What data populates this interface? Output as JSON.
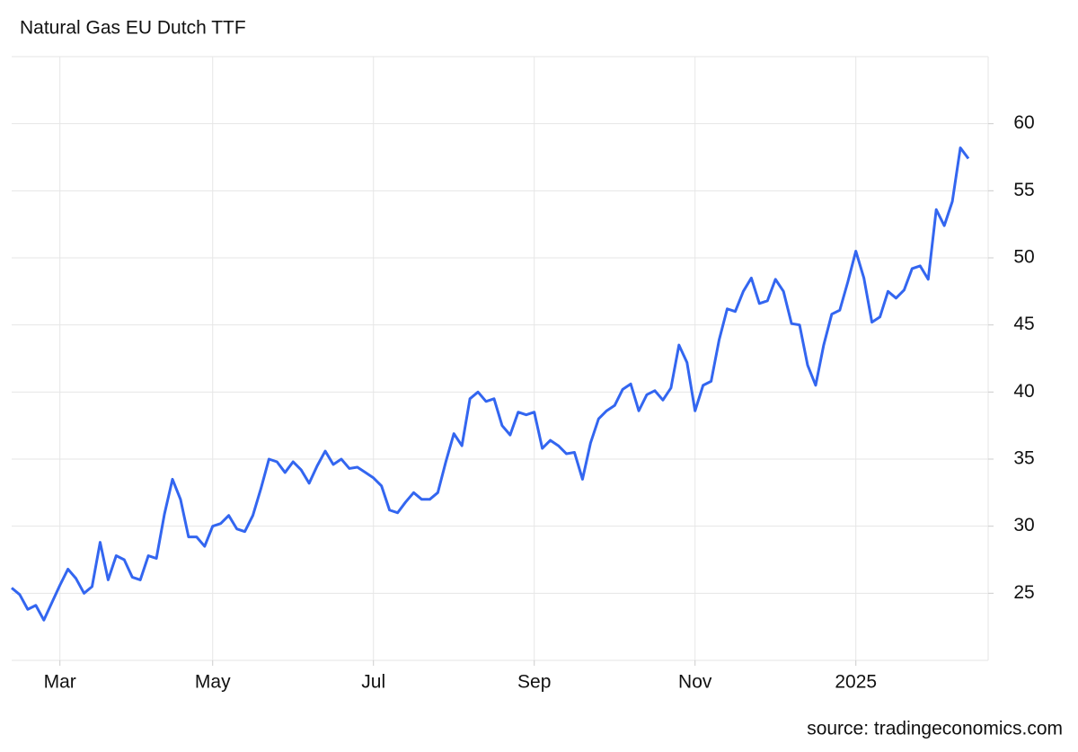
{
  "chart_data": {
    "type": "line",
    "title": "Natural Gas EU Dutch TTF",
    "source": "source: tradingeconomics.com",
    "categories": [
      null,
      null,
      null,
      null,
      null,
      null,
      "Mar",
      null,
      null,
      null,
      null,
      null,
      null,
      null,
      null,
      null,
      null,
      null,
      null,
      null,
      null,
      null,
      null,
      null,
      null,
      "May",
      null,
      null,
      null,
      null,
      null,
      null,
      null,
      null,
      null,
      null,
      null,
      null,
      null,
      null,
      null,
      null,
      null,
      null,
      null,
      "Jul",
      null,
      null,
      null,
      null,
      null,
      null,
      null,
      null,
      null,
      null,
      null,
      null,
      null,
      null,
      null,
      null,
      null,
      null,
      null,
      "Sep",
      null,
      null,
      null,
      null,
      null,
      null,
      null,
      null,
      null,
      null,
      null,
      null,
      null,
      null,
      null,
      null,
      null,
      null,
      null,
      "Nov",
      null,
      null,
      null,
      null,
      null,
      null,
      null,
      null,
      null,
      null,
      null,
      null,
      null,
      null,
      null,
      null,
      null,
      null,
      null,
      "2025",
      null,
      null,
      null,
      null,
      null,
      null,
      null,
      null,
      null,
      null,
      null,
      null,
      null,
      null
    ],
    "series": [
      {
        "color": "#3366f0",
        "values": [
          25.4,
          24.9,
          23.8,
          24.1,
          23.0,
          24.3,
          25.6,
          26.8,
          26.1,
          25.0,
          25.5,
          28.8,
          26.0,
          27.8,
          27.5,
          26.2,
          26.0,
          27.8,
          27.6,
          30.9,
          33.5,
          32.0,
          29.2,
          29.2,
          28.5,
          30.0,
          30.2,
          30.8,
          29.8,
          29.6,
          30.8,
          32.8,
          35.0,
          34.8,
          34.0,
          34.8,
          34.2,
          33.2,
          34.5,
          35.6,
          34.6,
          35.0,
          34.3,
          34.4,
          34.0,
          33.6,
          33.0,
          31.2,
          31.0,
          31.8,
          32.5,
          32.0,
          32.0,
          32.5,
          34.8,
          36.9,
          36.0,
          39.5,
          40.0,
          39.3,
          39.5,
          37.5,
          36.8,
          38.5,
          38.3,
          38.5,
          35.8,
          36.4,
          36.0,
          35.4,
          35.5,
          33.5,
          36.2,
          38.0,
          38.6,
          39.0,
          40.2,
          40.6,
          38.6,
          39.8,
          40.1,
          39.4,
          40.3,
          43.5,
          42.2,
          38.6,
          40.5,
          40.8,
          43.9,
          46.2,
          46.0,
          47.5,
          48.5,
          46.6,
          46.8,
          48.4,
          47.5,
          45.1,
          45.0,
          42.0,
          40.5,
          43.5,
          45.8,
          46.1,
          48.2,
          50.5,
          48.5,
          45.2,
          45.6,
          47.5,
          47.0,
          47.6,
          49.2,
          49.4,
          48.4,
          53.6,
          52.4,
          54.2,
          58.2,
          57.4
        ]
      }
    ],
    "ylim": [
      20,
      65
    ],
    "yticks": [
      25,
      30,
      35,
      40,
      45,
      50,
      55,
      60
    ],
    "grid": true,
    "y_axis_side": "right"
  }
}
